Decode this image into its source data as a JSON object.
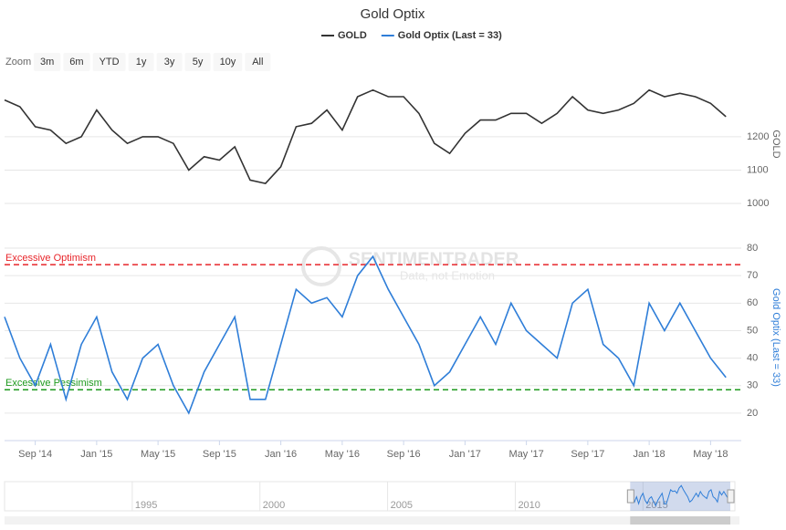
{
  "chart_data": {
    "type": "line",
    "title": "Gold Optix",
    "watermark": "SENTIMENTRADER",
    "watermark_sub": "Data, not Emotion",
    "zoom": {
      "label": "Zoom",
      "buttons": [
        "3m",
        "6m",
        "YTD",
        "1y",
        "3y",
        "5y",
        "10y",
        "All"
      ]
    },
    "x": [
      "2014-07",
      "2014-08",
      "2014-09",
      "2014-10",
      "2014-11",
      "2014-12",
      "2015-01",
      "2015-02",
      "2015-03",
      "2015-04",
      "2015-05",
      "2015-06",
      "2015-07",
      "2015-08",
      "2015-09",
      "2015-10",
      "2015-11",
      "2015-12",
      "2016-01",
      "2016-02",
      "2016-03",
      "2016-04",
      "2016-05",
      "2016-06",
      "2016-07",
      "2016-08",
      "2016-09",
      "2016-10",
      "2016-11",
      "2016-12",
      "2017-01",
      "2017-02",
      "2017-03",
      "2017-04",
      "2017-05",
      "2017-06",
      "2017-07",
      "2017-08",
      "2017-09",
      "2017-10",
      "2017-11",
      "2017-12",
      "2018-01",
      "2018-02",
      "2018-03",
      "2018-04",
      "2018-05",
      "2018-06"
    ],
    "xlim": [
      "2014-07",
      "2018-07"
    ],
    "xticks": [
      {
        "value": "2014-09",
        "label": "Sep '14"
      },
      {
        "value": "2015-01",
        "label": "Jan '15"
      },
      {
        "value": "2015-05",
        "label": "May '15"
      },
      {
        "value": "2015-09",
        "label": "Sep '15"
      },
      {
        "value": "2016-01",
        "label": "Jan '16"
      },
      {
        "value": "2016-05",
        "label": "May '16"
      },
      {
        "value": "2016-09",
        "label": "Sep '16"
      },
      {
        "value": "2017-01",
        "label": "Jan '17"
      },
      {
        "value": "2017-05",
        "label": "May '17"
      },
      {
        "value": "2017-09",
        "label": "Sep '17"
      },
      {
        "value": "2018-01",
        "label": "Jan '18"
      },
      {
        "value": "2018-05",
        "label": "May '18"
      }
    ],
    "series": [
      {
        "name": "GOLD",
        "color": "#333333",
        "axis": "y",
        "values": [
          1310,
          1290,
          1230,
          1220,
          1180,
          1200,
          1280,
          1220,
          1180,
          1200,
          1200,
          1180,
          1100,
          1140,
          1130,
          1170,
          1070,
          1060,
          1110,
          1230,
          1240,
          1280,
          1220,
          1320,
          1340,
          1320,
          1320,
          1270,
          1180,
          1150,
          1210,
          1250,
          1250,
          1270,
          1270,
          1240,
          1270,
          1320,
          1280,
          1270,
          1280,
          1300,
          1340,
          1320,
          1330,
          1320,
          1300,
          1260
        ]
      },
      {
        "name": "Gold Optix (Last = 33)",
        "color": "#2f7ed8",
        "axis": "y2",
        "values": [
          55,
          40,
          30,
          45,
          25,
          45,
          55,
          35,
          25,
          40,
          45,
          30,
          20,
          35,
          45,
          55,
          25,
          25,
          45,
          65,
          60,
          62,
          55,
          70,
          77,
          65,
          55,
          45,
          30,
          35,
          45,
          55,
          45,
          60,
          50,
          45,
          40,
          60,
          65,
          45,
          40,
          30,
          60,
          50,
          60,
          50,
          40,
          33
        ]
      }
    ],
    "ylabel": "GOLD",
    "ylim": [
      940,
      1350
    ],
    "yticks": [
      1000,
      1100,
      1200
    ],
    "y2label": "Gold Optix (Last = 33)",
    "y2lim": [
      10,
      83
    ],
    "y2ticks": [
      20,
      30,
      40,
      50,
      60,
      70,
      80
    ],
    "reference_lines": [
      {
        "label": "Excessive Optimism",
        "value": 74,
        "color": "#e8262b"
      },
      {
        "label": "Excessive Pessimism",
        "value": 28.5,
        "color": "#1e9a1e"
      }
    ],
    "navigator": {
      "xlim": [
        1990,
        2018.6
      ],
      "xticks": [
        1995,
        2000,
        2005,
        2010,
        2015
      ]
    },
    "grid": true
  }
}
